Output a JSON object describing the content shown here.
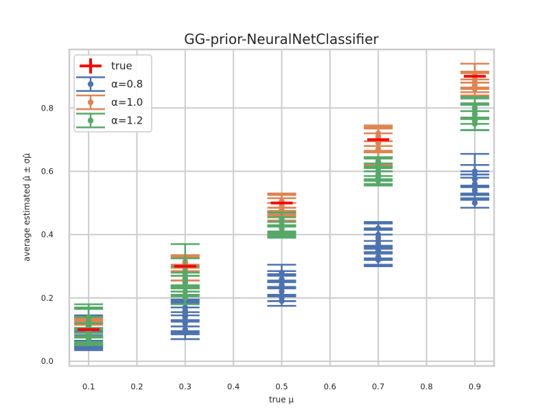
{
  "chart_data": {
    "type": "scatter",
    "title": "GG-prior-NeuralNetClassifier",
    "xlabel": "true μ",
    "ylabel": "average estimated μ̂ ± σμ̂",
    "xlim": [
      0.06,
      0.94
    ],
    "ylim": [
      -0.015,
      0.985
    ],
    "xticks": [
      "0.1",
      "0.2",
      "0.3",
      "0.4",
      "0.5",
      "0.6",
      "0.7",
      "0.8",
      "0.9"
    ],
    "yticks": [
      "0.0",
      "0.2",
      "0.4",
      "0.6",
      "0.8"
    ],
    "grid": true,
    "legend_position": "top-left",
    "x_groups": [
      0.1,
      0.3,
      0.5,
      0.7,
      0.9
    ],
    "series": [
      {
        "name": "true",
        "color": "#ff0000",
        "marker": "bar",
        "points": [
          [
            0.1,
            0.1
          ],
          [
            0.3,
            0.3
          ],
          [
            0.5,
            0.5
          ],
          [
            0.7,
            0.7
          ],
          [
            0.9,
            0.9
          ]
        ]
      },
      {
        "name": "α=0.8",
        "color": "#4c72b0",
        "marker": "errorbar",
        "points": [
          [
            0.1,
            0.05,
            0.015
          ],
          [
            0.1,
            0.06,
            0.02
          ],
          [
            0.1,
            0.065,
            0.018
          ],
          [
            0.1,
            0.07,
            0.025
          ],
          [
            0.1,
            0.075,
            0.03
          ],
          [
            0.1,
            0.085,
            0.035
          ],
          [
            0.1,
            0.095,
            0.04
          ],
          [
            0.1,
            0.1,
            0.045
          ],
          [
            0.3,
            0.09,
            0.02
          ],
          [
            0.3,
            0.1,
            0.03
          ],
          [
            0.3,
            0.12,
            0.035
          ],
          [
            0.3,
            0.13,
            0.04
          ],
          [
            0.3,
            0.14,
            0.045
          ],
          [
            0.3,
            0.15,
            0.04
          ],
          [
            0.3,
            0.16,
            0.035
          ],
          [
            0.3,
            0.17,
            0.025
          ],
          [
            0.5,
            0.19,
            0.015
          ],
          [
            0.5,
            0.2,
            0.01
          ],
          [
            0.5,
            0.22,
            0.03
          ],
          [
            0.5,
            0.23,
            0.02
          ],
          [
            0.5,
            0.24,
            0.035
          ],
          [
            0.5,
            0.25,
            0.02
          ],
          [
            0.5,
            0.26,
            0.025
          ],
          [
            0.5,
            0.28,
            0.025
          ],
          [
            0.7,
            0.32,
            0.02
          ],
          [
            0.7,
            0.33,
            0.025
          ],
          [
            0.7,
            0.35,
            0.03
          ],
          [
            0.7,
            0.37,
            0.045
          ],
          [
            0.7,
            0.38,
            0.035
          ],
          [
            0.7,
            0.39,
            0.03
          ],
          [
            0.7,
            0.4,
            0.035
          ],
          [
            0.7,
            0.42,
            0.02
          ],
          [
            0.9,
            0.5,
            0.015
          ],
          [
            0.9,
            0.53,
            0.02
          ],
          [
            0.9,
            0.54,
            0.015
          ],
          [
            0.9,
            0.55,
            0.04
          ],
          [
            0.9,
            0.56,
            0.03
          ],
          [
            0.9,
            0.575,
            0.025
          ],
          [
            0.9,
            0.59,
            0.065
          ],
          [
            0.9,
            0.6,
            0.02
          ]
        ]
      },
      {
        "name": "α=1.0",
        "color": "#dd8452",
        "marker": "errorbar",
        "points": [
          [
            0.1,
            0.09,
            0.015
          ],
          [
            0.1,
            0.095,
            0.02
          ],
          [
            0.1,
            0.1,
            0.025
          ],
          [
            0.1,
            0.105,
            0.03
          ],
          [
            0.1,
            0.11,
            0.02
          ],
          [
            0.1,
            0.115,
            0.015
          ],
          [
            0.3,
            0.25,
            0.02
          ],
          [
            0.3,
            0.27,
            0.015
          ],
          [
            0.3,
            0.28,
            0.025
          ],
          [
            0.3,
            0.29,
            0.035
          ],
          [
            0.3,
            0.3,
            0.03
          ],
          [
            0.3,
            0.31,
            0.025
          ],
          [
            0.3,
            0.315,
            0.02
          ],
          [
            0.5,
            0.46,
            0.015
          ],
          [
            0.5,
            0.47,
            0.015
          ],
          [
            0.5,
            0.48,
            0.02
          ],
          [
            0.5,
            0.49,
            0.025
          ],
          [
            0.5,
            0.5,
            0.03
          ],
          [
            0.5,
            0.505,
            0.02
          ],
          [
            0.7,
            0.63,
            0.015
          ],
          [
            0.7,
            0.64,
            0.02
          ],
          [
            0.7,
            0.67,
            0.025
          ],
          [
            0.7,
            0.69,
            0.03
          ],
          [
            0.7,
            0.7,
            0.035
          ],
          [
            0.7,
            0.71,
            0.03
          ],
          [
            0.7,
            0.72,
            0.025
          ],
          [
            0.9,
            0.86,
            0.02
          ],
          [
            0.9,
            0.87,
            0.02
          ],
          [
            0.9,
            0.88,
            0.03
          ],
          [
            0.9,
            0.89,
            0.025
          ],
          [
            0.9,
            0.9,
            0.04
          ],
          [
            0.9,
            0.91,
            0.03
          ]
        ]
      },
      {
        "name": "α=1.2",
        "color": "#55a868",
        "marker": "errorbar",
        "points": [
          [
            0.1,
            0.07,
            0.02
          ],
          [
            0.1,
            0.08,
            0.025
          ],
          [
            0.1,
            0.09,
            0.03
          ],
          [
            0.1,
            0.1,
            0.04
          ],
          [
            0.1,
            0.11,
            0.03
          ],
          [
            0.1,
            0.12,
            0.045
          ],
          [
            0.1,
            0.13,
            0.04
          ],
          [
            0.1,
            0.14,
            0.04
          ],
          [
            0.3,
            0.2,
            0.02
          ],
          [
            0.3,
            0.22,
            0.015
          ],
          [
            0.3,
            0.24,
            0.03
          ],
          [
            0.3,
            0.25,
            0.03
          ],
          [
            0.3,
            0.26,
            0.02
          ],
          [
            0.3,
            0.27,
            0.03
          ],
          [
            0.3,
            0.28,
            0.045
          ],
          [
            0.3,
            0.3,
            0.07
          ],
          [
            0.5,
            0.4,
            0.01
          ],
          [
            0.5,
            0.41,
            0.015
          ],
          [
            0.5,
            0.42,
            0.02
          ],
          [
            0.5,
            0.43,
            0.025
          ],
          [
            0.5,
            0.44,
            0.03
          ],
          [
            0.5,
            0.45,
            0.02
          ],
          [
            0.7,
            0.57,
            0.015
          ],
          [
            0.7,
            0.58,
            0.02
          ],
          [
            0.7,
            0.59,
            0.02
          ],
          [
            0.7,
            0.6,
            0.025
          ],
          [
            0.7,
            0.61,
            0.035
          ],
          [
            0.7,
            0.62,
            0.02
          ],
          [
            0.7,
            0.63,
            0.015
          ],
          [
            0.9,
            0.75,
            0.02
          ],
          [
            0.9,
            0.76,
            0.03
          ],
          [
            0.9,
            0.77,
            0.04
          ],
          [
            0.9,
            0.78,
            0.03
          ],
          [
            0.9,
            0.79,
            0.025
          ],
          [
            0.9,
            0.8,
            0.035
          ],
          [
            0.9,
            0.81,
            0.02
          ]
        ]
      }
    ]
  }
}
